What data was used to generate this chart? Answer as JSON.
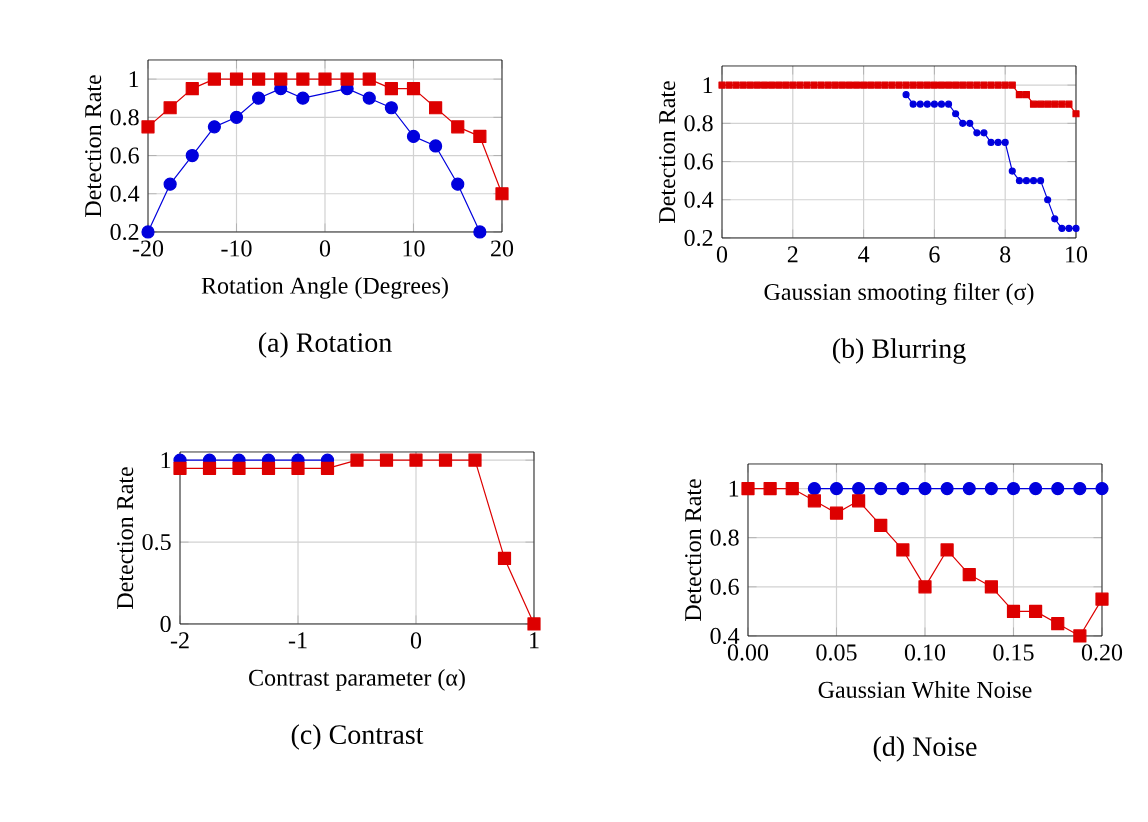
{
  "chart_data": [
    {
      "type": "line",
      "title": "(a) Rotation",
      "xlabel": "Rotation Angle (Degrees)",
      "ylabel": "Detection Rate",
      "grid": true,
      "x": [
        -20,
        -17.5,
        -15,
        -12.5,
        -10,
        -7.5,
        -5,
        -2.5,
        0,
        2.5,
        5,
        7.5,
        10,
        12.5,
        15,
        17.5,
        20
      ],
      "xlim": [
        -20,
        20
      ],
      "ylim": [
        0.2,
        1.1
      ],
      "xticks": [
        -20,
        -10,
        0,
        10,
        20
      ],
      "yticks": [
        0.2,
        0.4,
        0.6,
        0.8,
        1
      ],
      "series": [
        {
          "color": "#0000dd",
          "marker": "circle",
          "values": [
            0.2,
            0.45,
            0.6,
            0.75,
            0.8,
            0.9,
            0.95,
            0.9,
            null,
            0.95,
            0.9,
            0.85,
            0.7,
            0.65,
            0.45,
            0.2,
            null
          ]
        },
        {
          "color": "#dd0000",
          "marker": "square",
          "values": [
            0.75,
            0.85,
            0.95,
            1,
            1,
            1,
            1,
            1,
            1,
            1,
            1,
            0.95,
            0.95,
            0.85,
            0.75,
            0.7,
            0.4
          ]
        }
      ]
    },
    {
      "type": "line",
      "title": "(b) Blurring",
      "xlabel": "Gaussian smooting filter (σ)",
      "ylabel": "Detection Rate",
      "grid": true,
      "x": [
        0,
        0.2,
        0.4,
        0.6,
        0.8,
        1,
        1.2,
        1.4,
        1.6,
        1.8,
        2,
        2.2,
        2.4,
        2.6,
        2.8,
        3,
        3.2,
        3.4,
        3.6,
        3.8,
        4,
        4.2,
        4.4,
        4.6,
        4.8,
        5,
        5.2,
        5.4,
        5.6,
        5.8,
        6,
        6.2,
        6.4,
        6.6,
        6.8,
        7,
        7.2,
        7.4,
        7.6,
        7.8,
        8,
        8.2,
        8.4,
        8.6,
        8.8,
        9,
        9.2,
        9.4,
        9.6,
        9.8,
        10
      ],
      "xlim": [
        0,
        10
      ],
      "ylim": [
        0.2,
        1.1
      ],
      "xticks": [
        0,
        2,
        4,
        6,
        8,
        10
      ],
      "yticks": [
        0.2,
        0.4,
        0.6,
        0.8,
        1
      ],
      "series": [
        {
          "color": "#0000dd",
          "marker": "circle",
          "values": [
            null,
            null,
            null,
            null,
            null,
            null,
            null,
            null,
            null,
            null,
            null,
            null,
            null,
            null,
            null,
            null,
            null,
            null,
            null,
            null,
            null,
            null,
            null,
            null,
            null,
            null,
            0.95,
            0.9,
            0.9,
            0.9,
            0.9,
            0.9,
            0.9,
            0.85,
            0.8,
            0.8,
            0.75,
            0.75,
            0.7,
            0.7,
            0.7,
            0.55,
            0.5,
            0.5,
            0.5,
            0.5,
            0.4,
            0.3,
            0.25,
            0.25,
            0.25
          ]
        },
        {
          "color": "#dd0000",
          "marker": "square",
          "values": [
            1,
            1,
            1,
            1,
            1,
            1,
            1,
            1,
            1,
            1,
            1,
            1,
            1,
            1,
            1,
            1,
            1,
            1,
            1,
            1,
            1,
            1,
            1,
            1,
            1,
            1,
            1,
            1,
            1,
            1,
            1,
            1,
            1,
            1,
            1,
            1,
            1,
            1,
            1,
            1,
            1,
            1,
            0.95,
            0.95,
            0.9,
            0.9,
            0.9,
            0.9,
            0.9,
            0.9,
            0.85
          ]
        }
      ]
    },
    {
      "type": "line",
      "title": "(c) Contrast",
      "xlabel": "Contrast parameter (α)",
      "ylabel": "Detection Rate",
      "grid": true,
      "x": [
        -2,
        -1.75,
        -1.5,
        -1.25,
        -1,
        -0.75,
        -0.5,
        -0.25,
        0,
        0.25,
        0.5,
        0.75,
        1
      ],
      "xlim": [
        -2,
        1
      ],
      "ylim": [
        0,
        1.05
      ],
      "xticks": [
        -2,
        -1,
        0,
        1
      ],
      "yticks": [
        0,
        0.5,
        1
      ],
      "series": [
        {
          "color": "#0000dd",
          "marker": "circle",
          "values": [
            1,
            1,
            1,
            1,
            1,
            1,
            null,
            null,
            null,
            null,
            null,
            null,
            null
          ]
        },
        {
          "color": "#dd0000",
          "marker": "square",
          "values": [
            0.95,
            0.95,
            0.95,
            0.95,
            0.95,
            0.95,
            1,
            1,
            1,
            1,
            1,
            0.4,
            0
          ]
        }
      ]
    },
    {
      "type": "line",
      "title": "(d) Noise",
      "xlabel": "Gaussian White Noise",
      "ylabel": "Detection Rate",
      "grid": true,
      "x": [
        0,
        0.0125,
        0.025,
        0.0375,
        0.05,
        0.0625,
        0.075,
        0.0875,
        0.1,
        0.1125,
        0.125,
        0.1375,
        0.15,
        0.1625,
        0.175,
        0.1875,
        0.2
      ],
      "xlim": [
        0,
        0.2
      ],
      "ylim": [
        0.4,
        1.1
      ],
      "xticks": [
        {
          "value": 0,
          "label": "0.00"
        },
        {
          "value": 0.05,
          "label": "0.05"
        },
        {
          "value": 0.1,
          "label": "0.10"
        },
        {
          "value": 0.15,
          "label": "0.15"
        },
        {
          "value": 0.2,
          "label": "0.20"
        }
      ],
      "yticks": [
        0.4,
        0.6,
        0.8,
        1
      ],
      "series": [
        {
          "color": "#0000dd",
          "marker": "circle",
          "values": [
            null,
            null,
            null,
            1,
            1,
            1,
            1,
            1,
            1,
            1,
            1,
            1,
            1,
            1,
            1,
            1,
            1
          ]
        },
        {
          "color": "#dd0000",
          "marker": "square",
          "values": [
            1,
            1,
            1,
            0.95,
            0.9,
            0.95,
            0.85,
            0.75,
            0.6,
            0.75,
            0.65,
            0.6,
            0.5,
            0.5,
            0.45,
            0.4,
            0.55
          ]
        }
      ]
    }
  ]
}
